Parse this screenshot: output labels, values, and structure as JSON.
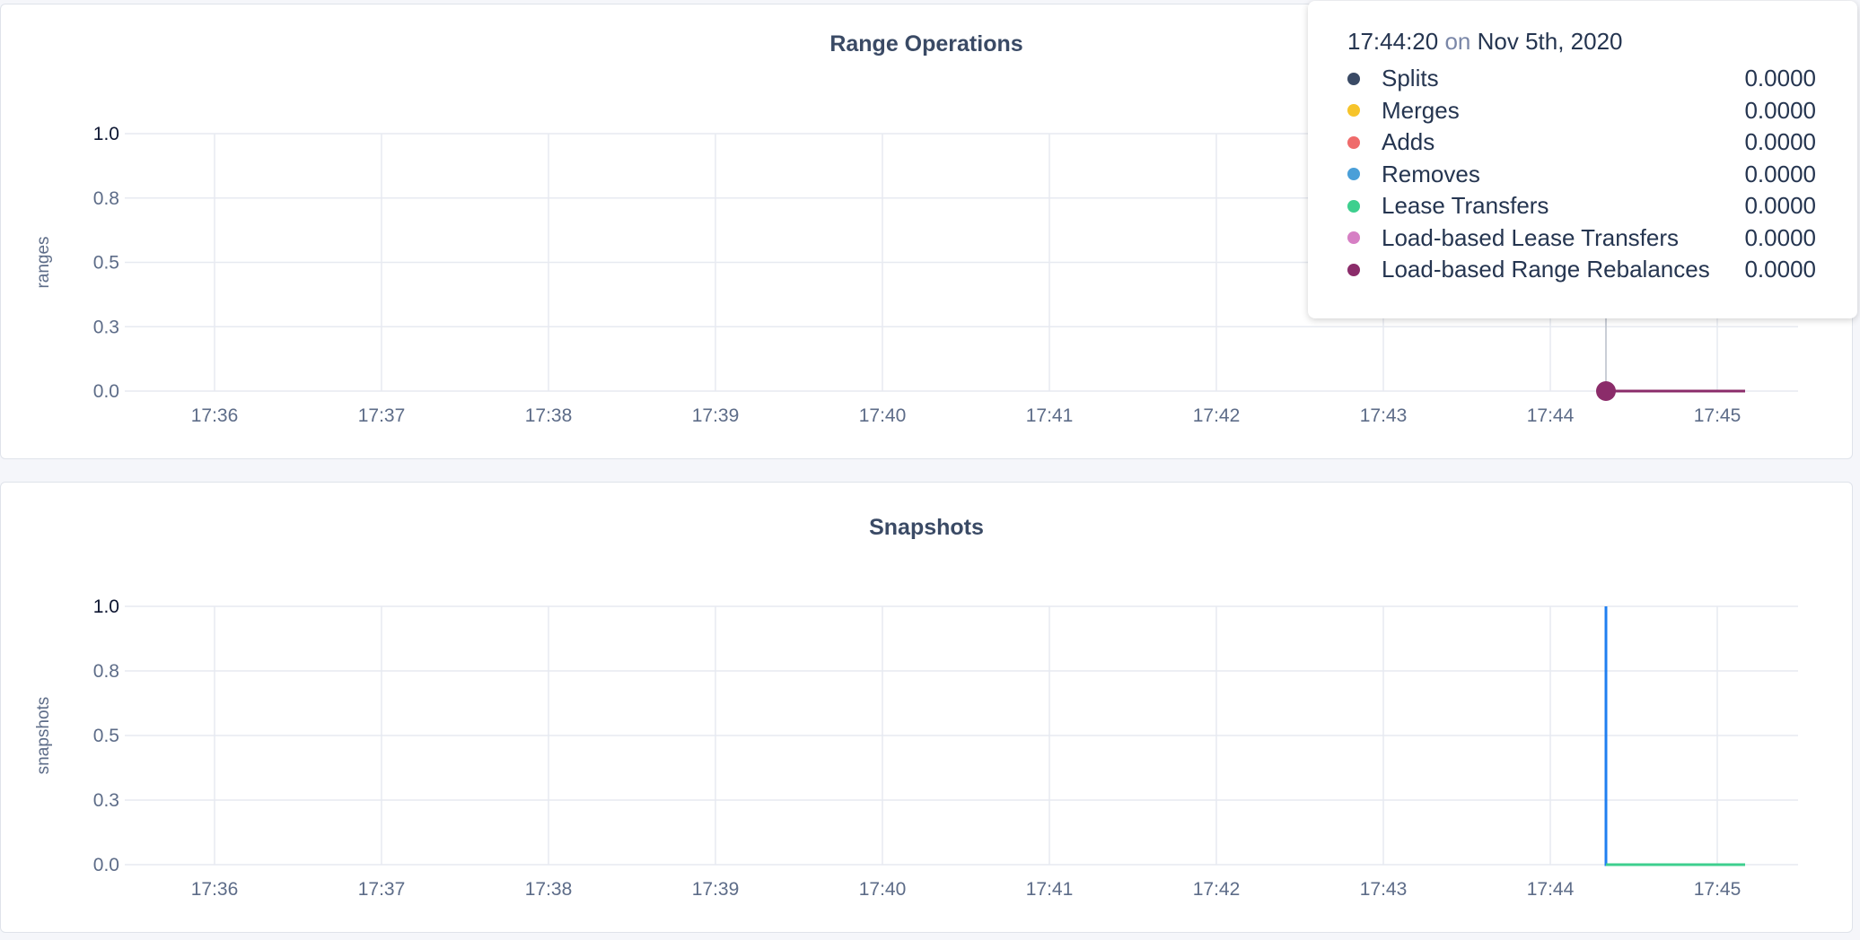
{
  "chart_data": [
    {
      "type": "line",
      "title": "Range Operations",
      "ylabel": "ranges",
      "xlabel": "",
      "ylim": [
        0,
        1
      ],
      "yticks": [
        "0.0",
        "0.3",
        "0.5",
        "0.8",
        "1.0"
      ],
      "xticks": [
        "17:36",
        "17:37",
        "17:38",
        "17:39",
        "17:40",
        "17:41",
        "17:42",
        "17:43",
        "17:44",
        "17:45"
      ],
      "grid": true,
      "series": [
        {
          "name": "Splits",
          "color": "#3a4a65",
          "points": [
            [
              "17:44:20",
              0
            ],
            [
              "17:45:10",
              0
            ]
          ]
        },
        {
          "name": "Merges",
          "color": "#f6c42b",
          "points": [
            [
              "17:44:20",
              0
            ],
            [
              "17:45:10",
              0
            ]
          ]
        },
        {
          "name": "Adds",
          "color": "#ef6b6b",
          "points": [
            [
              "17:44:20",
              0
            ],
            [
              "17:45:10",
              0
            ]
          ]
        },
        {
          "name": "Removes",
          "color": "#4a9fd8",
          "points": [
            [
              "17:44:20",
              0
            ],
            [
              "17:45:10",
              0
            ]
          ]
        },
        {
          "name": "Lease Transfers",
          "color": "#3ecf8e",
          "points": [
            [
              "17:44:20",
              0
            ],
            [
              "17:45:10",
              0
            ]
          ]
        },
        {
          "name": "Load-based Lease Transfers",
          "color": "#d67fc4",
          "points": [
            [
              "17:44:20",
              0
            ],
            [
              "17:45:10",
              0
            ]
          ]
        },
        {
          "name": "Load-based Range Rebalances",
          "color": "#8b2c6a",
          "points": [
            [
              "17:44:20",
              0
            ],
            [
              "17:45:10",
              0
            ]
          ]
        }
      ],
      "hover": {
        "time": "17:44:20",
        "on": "on",
        "date": "Nov 5th, 2020",
        "values": [
          "0.0000",
          "0.0000",
          "0.0000",
          "0.0000",
          "0.0000",
          "0.0000",
          "0.0000"
        ]
      }
    },
    {
      "type": "line",
      "title": "Snapshots",
      "ylabel": "snapshots",
      "xlabel": "",
      "ylim": [
        0,
        1
      ],
      "yticks": [
        "0.0",
        "0.3",
        "0.5",
        "0.8",
        "1.0"
      ],
      "xticks": [
        "17:36",
        "17:37",
        "17:38",
        "17:39",
        "17:40",
        "17:41",
        "17:42",
        "17:43",
        "17:44",
        "17:45"
      ],
      "grid": true,
      "series": [
        {
          "color": "#1f7ff0",
          "points": [
            [
              "17:44:20",
              1
            ],
            [
              "17:44:20",
              0
            ],
            [
              "17:45:10",
              0
            ]
          ]
        },
        {
          "color": "#3ecf8e",
          "points": [
            [
              "17:44:20",
              0
            ],
            [
              "17:45:10",
              0
            ]
          ]
        }
      ]
    }
  ]
}
